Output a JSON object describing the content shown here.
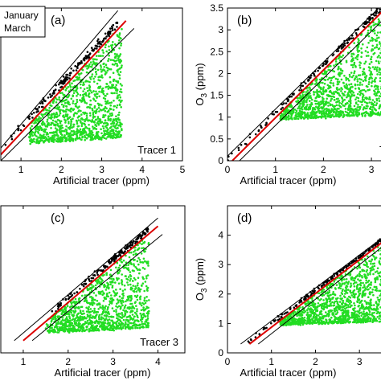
{
  "chart_data": [
    {
      "panel": "(a)",
      "type": "scatter",
      "xlabel": "Artificial tracer (ppm)",
      "ylabel": "",
      "xticks": [
        "1",
        "2",
        "3",
        "4",
        "5"
      ],
      "xlim": [
        0.5,
        5
      ],
      "ylim": [
        0,
        3
      ],
      "inner_label": "Tracer 1",
      "legend": {
        "entries": [
          "January",
          "March"
        ],
        "placement": "top-left"
      },
      "colors": {
        "march": "#22dd22",
        "january": "#000000",
        "fit": "#dd0000",
        "bounds": "#000000"
      },
      "fit_line": {
        "x": [
          0.5,
          3.6
        ],
        "y": [
          0.12,
          2.75
        ]
      },
      "bound_lines": [
        {
          "x": [
            0.5,
            3.4
          ],
          "y": [
            0.25,
            2.95
          ]
        },
        {
          "x": [
            0.5,
            3.8
          ],
          "y": [
            0.0,
            2.6
          ]
        }
      ],
      "series": [
        {
          "name": "January",
          "desc": "points along fit line, x 0.6-3.4"
        },
        {
          "name": "March",
          "desc": "wedge cloud, x 1.2-3.5, y 0.3-2.4"
        }
      ]
    },
    {
      "panel": "(b)",
      "type": "scatter",
      "xlabel": "Artificial tracer (ppm)",
      "ylabel": "O3 (ppm)",
      "xticks": [
        "0",
        "1",
        "2",
        "3"
      ],
      "yticks": [
        "0",
        "0.5",
        "1",
        "1.5",
        "2",
        "2.5",
        "3",
        "3.5"
      ],
      "xlim": [
        0,
        3.3
      ],
      "ylim": [
        0,
        3.5
      ],
      "inner_label": "T",
      "fit_line": {
        "x": [
          0.1,
          3.3
        ],
        "y": [
          0.0,
          3.5
        ]
      },
      "bound_lines": [
        {
          "x": [
            -0.1,
            3.2
          ],
          "y": [
            0.0,
            3.55
          ]
        },
        {
          "x": [
            0.25,
            3.4
          ],
          "y": [
            0.0,
            3.4
          ]
        }
      ],
      "series": [
        {
          "name": "January",
          "desc": "points along fit line, x 0-3.3"
        },
        {
          "name": "March",
          "desc": "wedge cloud, x 1.1-3.3, y 0.9-2.8"
        }
      ]
    },
    {
      "panel": "(c)",
      "type": "scatter",
      "xlabel": "Artificial tracer (ppm)",
      "ylabel": "",
      "xticks": [
        "1",
        "2",
        "3",
        "4"
      ],
      "xlim": [
        0.5,
        4.6
      ],
      "ylim": [
        0,
        3.6
      ],
      "inner_label": "Tracer 3",
      "fit_line": {
        "x": [
          1.0,
          4.0
        ],
        "y": [
          0.3,
          3.1
        ]
      },
      "bound_lines": [
        {
          "x": [
            0.8,
            4.0
          ],
          "y": [
            0.3,
            3.3
          ]
        },
        {
          "x": [
            1.2,
            4.1
          ],
          "y": [
            0.3,
            2.9
          ]
        }
      ],
      "series": [
        {
          "name": "January",
          "desc": "points along fit line, x 1.6-3.8"
        },
        {
          "name": "March",
          "desc": "wedge cloud, x 1.5-3.8, y 0.5-2.8"
        }
      ]
    },
    {
      "panel": "(d)",
      "type": "scatter",
      "xlabel": "Artificial tracer (ppm)",
      "ylabel": "O3 (ppm)",
      "xticks": [
        "0",
        "1",
        "2",
        "3"
      ],
      "yticks": [
        "0",
        "1",
        "2",
        "3",
        "4"
      ],
      "xlim": [
        0,
        3.6
      ],
      "ylim": [
        0,
        5
      ],
      "inner_label": "",
      "fit_line": {
        "x": [
          0.5,
          3.6
        ],
        "y": [
          0.3,
          3.85
        ]
      },
      "bound_lines": [
        {
          "x": [
            0.3,
            3.6
          ],
          "y": [
            0.3,
            4.0
          ]
        },
        {
          "x": [
            0.7,
            3.6
          ],
          "y": [
            0.3,
            3.7
          ]
        }
      ],
      "series": [
        {
          "name": "January",
          "desc": "points along fit line, x 0.3-3.5"
        },
        {
          "name": "March",
          "desc": "wedge cloud, x 1.2-3.5, y 0.9-3.1"
        }
      ]
    }
  ]
}
